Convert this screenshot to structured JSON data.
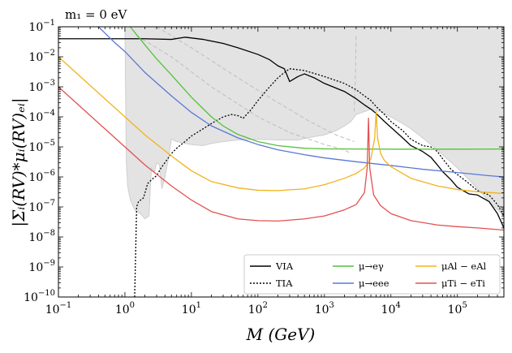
{
  "chart_data": {
    "type": "line",
    "annotation": "m₁ = 0 eV",
    "xlabel": "M (GeV)",
    "ylabel": "|Σᵢ(RV)*μᵢ(RV)ₑᵢ|",
    "xscale": "log",
    "yscale": "log",
    "xlim": [
      0.1,
      500000
    ],
    "ylim": [
      1e-10,
      0.1
    ],
    "x_ticks": [
      {
        "value": 0.1,
        "base": "10",
        "exp": "−1"
      },
      {
        "value": 1,
        "base": "10",
        "exp": "0"
      },
      {
        "value": 10,
        "base": "10",
        "exp": "1"
      },
      {
        "value": 100,
        "base": "10",
        "exp": "2"
      },
      {
        "value": 1000,
        "base": "10",
        "exp": "3"
      },
      {
        "value": 10000,
        "base": "10",
        "exp": "4"
      },
      {
        "value": 100000,
        "base": "10",
        "exp": "5"
      }
    ],
    "y_ticks": [
      {
        "value": 1e-10,
        "base": "10",
        "exp": "−10"
      },
      {
        "value": 1e-09,
        "base": "10",
        "exp": "−9"
      },
      {
        "value": 1e-08,
        "base": "10",
        "exp": "−8"
      },
      {
        "value": 1e-07,
        "base": "10",
        "exp": "−7"
      },
      {
        "value": 1e-06,
        "base": "10",
        "exp": "−6"
      },
      {
        "value": 1e-05,
        "base": "10",
        "exp": "−5"
      },
      {
        "value": 0.0001,
        "base": "10",
        "exp": "−4"
      },
      {
        "value": 0.001,
        "base": "10",
        "exp": "−3"
      },
      {
        "value": 0.01,
        "base": "10",
        "exp": "−2"
      },
      {
        "value": 0.1,
        "base": "10",
        "exp": "−1"
      }
    ],
    "legend": {
      "location": "lower-right",
      "entries": [
        {
          "label": "VIA",
          "series": "VIA"
        },
        {
          "label": "μ→eγ",
          "series": "mu_egamma"
        },
        {
          "label": "μAl − eAl",
          "series": "muAl"
        },
        {
          "label": "TIA",
          "series": "TIA"
        },
        {
          "label": "μ→eee",
          "series": "mu_eee"
        },
        {
          "label": "μTi − eTi",
          "series": "muTi"
        }
      ]
    },
    "excluded_region": {
      "label": "excluded",
      "color": "#e3e3e3",
      "edge_color": "#cfcfcf",
      "boundary": [
        [
          0.1,
          0.1
        ],
        [
          1.0,
          0.1
        ],
        [
          1.05,
          3e-06
        ],
        [
          1.1,
          5e-07
        ],
        [
          1.2,
          1.8e-07
        ],
        [
          1.4,
          8e-08
        ],
        [
          1.7,
          6e-08
        ],
        [
          2.0,
          4e-08
        ],
        [
          2.3,
          5e-08
        ],
        [
          2.5,
          2e-06
        ],
        [
          2.8,
          1.5e-06
        ],
        [
          3.0,
          3e-06
        ],
        [
          3.3,
          2.5e-06
        ],
        [
          3.6,
          4e-07
        ],
        [
          4.0,
          1e-06
        ],
        [
          4.5,
          4e-06
        ],
        [
          5.0,
          1.8e-05
        ],
        [
          6.0,
          1.5e-05
        ],
        [
          8.0,
          1.3e-05
        ],
        [
          10,
          1.2e-05
        ],
        [
          15,
          1.1e-05
        ],
        [
          20,
          1.3e-05
        ],
        [
          30,
          1.5e-05
        ],
        [
          50,
          1.7e-05
        ],
        [
          100,
          1.8e-05
        ],
        [
          200,
          1.7e-05
        ],
        [
          400,
          1.7e-05
        ],
        [
          700,
          2.2e-05
        ],
        [
          1000,
          2.5e-05
        ],
        [
          1500,
          3.5e-05
        ],
        [
          2000,
          5e-05
        ],
        [
          2500,
          7e-05
        ],
        [
          3000,
          0.00012
        ],
        [
          4000,
          0.00015
        ],
        [
          5000,
          0.00018
        ],
        [
          7000,
          0.00015
        ],
        [
          10000,
          0.0001
        ],
        [
          15000,
          6e-05
        ],
        [
          20000,
          4e-05
        ],
        [
          30000,
          2e-05
        ],
        [
          50000,
          8e-06
        ],
        [
          70000,
          4e-06
        ],
        [
          100000,
          2e-06
        ],
        [
          150000,
          8e-07
        ],
        [
          200000,
          4e-07
        ],
        [
          300000,
          1.5e-07
        ],
        [
          500000,
          5e-08
        ],
        [
          500000,
          0.1
        ]
      ],
      "dashed_guides": [
        [
          [
            1.5,
            0.05
          ],
          [
            5,
            0.01
          ],
          [
            20,
            0.001
          ],
          [
            100,
            0.0001
          ],
          [
            300,
            3e-05
          ],
          [
            1000,
            1.2e-05
          ],
          [
            2000,
            8e-06
          ],
          [
            2500,
            6e-06
          ]
        ],
        [
          [
            3,
            0.1
          ],
          [
            10,
            0.02
          ],
          [
            50,
            0.002
          ],
          [
            200,
            0.0003
          ],
          [
            600,
            7e-05
          ],
          [
            1500,
            2.5e-05
          ],
          [
            2800,
            1.5e-05
          ]
        ],
        [
          [
            2800,
            0.00015
          ],
          [
            2900,
            0.001
          ],
          [
            3000,
            0.05
          ]
        ]
      ]
    },
    "series": [
      {
        "key": "VIA",
        "name": "VIA",
        "color": "#000000",
        "dash": "none",
        "points": [
          [
            0.1,
            0.04
          ],
          [
            0.2,
            0.04
          ],
          [
            0.5,
            0.04
          ],
          [
            1,
            0.04
          ],
          [
            2,
            0.04
          ],
          [
            5,
            0.038
          ],
          [
            8,
            0.045
          ],
          [
            15,
            0.038
          ],
          [
            30,
            0.028
          ],
          [
            50,
            0.02
          ],
          [
            100,
            0.012
          ],
          [
            150,
            0.008
          ],
          [
            200,
            0.005
          ],
          [
            250,
            0.004
          ],
          [
            300,
            0.0015
          ],
          [
            400,
            0.0022
          ],
          [
            500,
            0.0027
          ],
          [
            700,
            0.002
          ],
          [
            1000,
            0.0013
          ],
          [
            2000,
            0.0007
          ],
          [
            3000,
            0.0004
          ],
          [
            4000,
            0.00025
          ],
          [
            5000,
            0.00018
          ],
          [
            6000,
            0.00013
          ],
          [
            8000,
            7e-05
          ],
          [
            10000,
            4.5e-05
          ],
          [
            15000,
            2e-05
          ],
          [
            20000,
            1.1e-05
          ],
          [
            30000,
            7e-06
          ],
          [
            40000,
            4.5e-06
          ],
          [
            50000,
            2.5e-06
          ],
          [
            60000,
            1.5e-06
          ],
          [
            80000,
            8e-07
          ],
          [
            100000,
            4.5e-07
          ],
          [
            150000,
            2.7e-07
          ],
          [
            200000,
            2.5e-07
          ],
          [
            300000,
            1.5e-07
          ],
          [
            400000,
            6e-08
          ],
          [
            500000,
            2e-08
          ]
        ]
      },
      {
        "key": "TIA",
        "name": "TIA",
        "color": "#000000",
        "dash": "2,2",
        "points": [
          [
            1.4,
            1e-10
          ],
          [
            1.45,
            3e-09
          ],
          [
            1.5,
            1e-07
          ],
          [
            1.6,
            1.5e-07
          ],
          [
            1.9,
            2e-07
          ],
          [
            2.2,
            6e-07
          ],
          [
            2.5,
            8e-07
          ],
          [
            3,
            1.1e-06
          ],
          [
            3.5,
            2e-06
          ],
          [
            4,
            3e-06
          ],
          [
            5,
            6e-06
          ],
          [
            6,
            9e-06
          ],
          [
            8,
            1.5e-05
          ],
          [
            10,
            2.3e-05
          ],
          [
            15,
            4e-05
          ],
          [
            20,
            6e-05
          ],
          [
            30,
            0.0001
          ],
          [
            40,
            0.00012
          ],
          [
            50,
            0.00011
          ],
          [
            60,
            9e-05
          ],
          [
            80,
            0.00018
          ],
          [
            100,
            0.00035
          ],
          [
            150,
            0.001
          ],
          [
            200,
            0.002
          ],
          [
            250,
            0.003
          ],
          [
            300,
            0.004
          ],
          [
            500,
            0.0035
          ],
          [
            700,
            0.0028
          ],
          [
            1000,
            0.0022
          ],
          [
            2000,
            0.0013
          ],
          [
            3000,
            0.0008
          ],
          [
            4000,
            0.0005
          ],
          [
            5000,
            0.00035
          ],
          [
            6000,
            0.00022
          ],
          [
            8000,
            0.00012
          ],
          [
            10000,
            7e-05
          ],
          [
            15000,
            3.5e-05
          ],
          [
            20000,
            1.8e-05
          ],
          [
            30000,
            1.1e-05
          ],
          [
            40000,
            1e-05
          ],
          [
            50000,
            7e-06
          ],
          [
            60000,
            4e-06
          ],
          [
            80000,
            1.8e-06
          ],
          [
            100000,
            1.2e-06
          ],
          [
            150000,
            6e-07
          ],
          [
            200000,
            3.5e-07
          ],
          [
            300000,
            2.5e-07
          ],
          [
            400000,
            1.2e-07
          ],
          [
            500000,
            5e-08
          ]
        ]
      },
      {
        "key": "mu_egamma",
        "name": "μ→eγ",
        "color": "#55c13a",
        "dash": "none",
        "points": [
          [
            1.2,
            0.1
          ],
          [
            2,
            0.025
          ],
          [
            3,
            0.0085
          ],
          [
            5,
            0.0025
          ],
          [
            10,
            0.00045
          ],
          [
            20,
            0.0001
          ],
          [
            30,
            5e-05
          ],
          [
            50,
            2.6e-05
          ],
          [
            100,
            1.5e-05
          ],
          [
            200,
            1.1e-05
          ],
          [
            500,
            9e-06
          ],
          [
            1000,
            8.6e-06
          ],
          [
            3000,
            8.5e-06
          ],
          [
            10000,
            8.4e-06
          ],
          [
            100000,
            8.4e-06
          ],
          [
            500000,
            8.5e-06
          ]
        ]
      },
      {
        "key": "mu_eee",
        "name": "μ→eee",
        "color": "#5a78d6",
        "dash": "none",
        "points": [
          [
            0.4,
            0.1
          ],
          [
            0.7,
            0.03
          ],
          [
            1,
            0.015
          ],
          [
            2,
            0.003
          ],
          [
            5,
            0.0005
          ],
          [
            10,
            0.00014
          ],
          [
            20,
            5e-05
          ],
          [
            50,
            2e-05
          ],
          [
            100,
            1.2e-05
          ],
          [
            200,
            8e-06
          ],
          [
            500,
            5.5e-06
          ],
          [
            1000,
            4.3e-06
          ],
          [
            3000,
            3.2e-06
          ],
          [
            10000,
            2.4e-06
          ],
          [
            30000,
            1.8e-06
          ],
          [
            100000,
            1.4e-06
          ],
          [
            300000,
            1.1e-06
          ],
          [
            500000,
            1e-06
          ]
        ]
      },
      {
        "key": "muAl",
        "name": "μAl − eAl",
        "color": "#f2b31c",
        "dash": "none",
        "points": [
          [
            0.1,
            0.01
          ],
          [
            0.2,
            0.0025
          ],
          [
            0.5,
            0.0004
          ],
          [
            1,
            0.0001
          ],
          [
            2,
            2.5e-05
          ],
          [
            5,
            5e-06
          ],
          [
            10,
            1.6e-06
          ],
          [
            20,
            7e-07
          ],
          [
            50,
            4.3e-07
          ],
          [
            100,
            3.6e-07
          ],
          [
            200,
            3.5e-07
          ],
          [
            500,
            4e-07
          ],
          [
            1000,
            5.5e-07
          ],
          [
            2000,
            9e-07
          ],
          [
            3000,
            1.3e-06
          ],
          [
            4000,
            2e-06
          ],
          [
            5000,
            4e-06
          ],
          [
            5700,
            2e-05
          ],
          [
            6000,
            0.00015
          ],
          [
            6300,
            2e-05
          ],
          [
            7000,
            6e-06
          ],
          [
            8000,
            3.5e-06
          ],
          [
            10000,
            2.2e-06
          ],
          [
            20000,
            9e-07
          ],
          [
            50000,
            5e-07
          ],
          [
            100000,
            3.8e-07
          ],
          [
            200000,
            3.2e-07
          ],
          [
            500000,
            2.8e-07
          ]
        ]
      },
      {
        "key": "muTi",
        "name": "μTi − eTi",
        "color": "#e35050",
        "dash": "none",
        "points": [
          [
            0.1,
            0.001
          ],
          [
            0.2,
            0.00025
          ],
          [
            0.5,
            4e-05
          ],
          [
            1,
            1e-05
          ],
          [
            2,
            2.5e-06
          ],
          [
            5,
            5e-07
          ],
          [
            10,
            1.7e-07
          ],
          [
            20,
            7e-08
          ],
          [
            50,
            4e-08
          ],
          [
            100,
            3.5e-08
          ],
          [
            200,
            3.4e-08
          ],
          [
            500,
            4e-08
          ],
          [
            1000,
            5e-08
          ],
          [
            2000,
            8e-08
          ],
          [
            3000,
            1.2e-07
          ],
          [
            4000,
            3e-07
          ],
          [
            4400,
            2e-06
          ],
          [
            4600,
            9e-05
          ],
          [
            4800,
            2e-06
          ],
          [
            5500,
            2.5e-07
          ],
          [
            7000,
            1.1e-07
          ],
          [
            10000,
            6e-08
          ],
          [
            20000,
            3.5e-08
          ],
          [
            50000,
            2.5e-08
          ],
          [
            100000,
            2.2e-08
          ],
          [
            200000,
            2e-08
          ],
          [
            500000,
            1.7e-08
          ]
        ]
      }
    ]
  }
}
